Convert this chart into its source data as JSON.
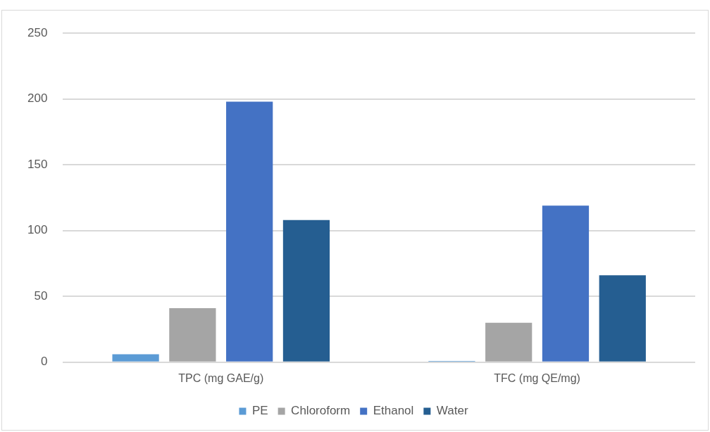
{
  "chart_data": {
    "type": "bar",
    "categories": [
      "TPC (mg GAE/g)",
      "TFC (mg QE/mg)"
    ],
    "series": [
      {
        "name": "PE",
        "color": "#5b9bd5",
        "values": [
          6,
          1
        ]
      },
      {
        "name": "Chloroform",
        "color": "#a5a5a5",
        "values": [
          41,
          30
        ]
      },
      {
        "name": "Ethanol",
        "color": "#4472c4",
        "values": [
          198,
          119
        ]
      },
      {
        "name": "Water",
        "color": "#255e91",
        "values": [
          108,
          66
        ]
      }
    ],
    "ylim": [
      0,
      250
    ],
    "yticks": [
      0,
      50,
      100,
      150,
      200,
      250
    ],
    "grid": "y",
    "legend": "bottom"
  }
}
